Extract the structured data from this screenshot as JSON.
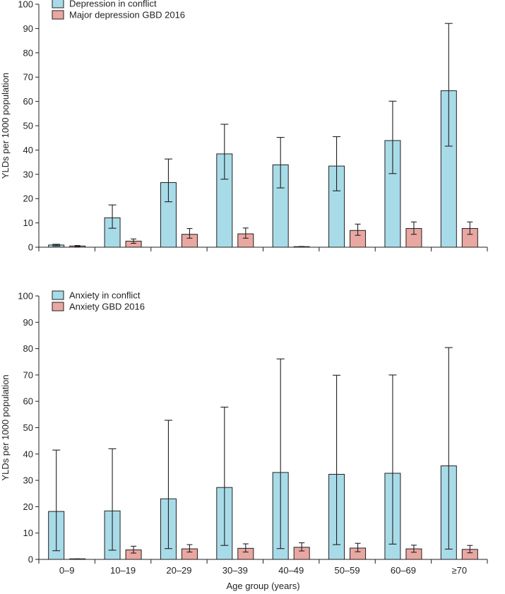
{
  "chart_data": [
    {
      "type": "bar",
      "panel": "top",
      "ylabel": "YLDs per 1000 population",
      "xlabel": "",
      "ylim": [
        0,
        100
      ],
      "yticks": [
        0,
        10,
        20,
        30,
        40,
        50,
        60,
        70,
        80,
        90,
        100
      ],
      "categories": [
        "0–9",
        "10–19",
        "20–29",
        "30–39",
        "40–49",
        "50–59",
        "60–69",
        "≥70"
      ],
      "legend_position": "top-left",
      "series": [
        {
          "name": "Depression in conflict",
          "color": "#a8dbe8",
          "values": [
            0.9,
            12.1,
            26.6,
            38.4,
            33.9,
            33.4,
            43.9,
            64.4
          ],
          "lower": [
            0.5,
            7.8,
            18.7,
            28.0,
            24.4,
            23.2,
            30.3,
            41.6
          ],
          "upper": [
            1.2,
            17.4,
            36.3,
            50.6,
            45.2,
            45.5,
            60.1,
            92.1
          ]
        },
        {
          "name": "Major depression GBD 2016",
          "color": "#e9a7a2",
          "values": [
            0.5,
            2.5,
            5.3,
            5.5,
            0.2,
            6.9,
            7.7,
            7.7
          ],
          "lower": [
            0.3,
            1.6,
            3.7,
            3.7,
            0.1,
            4.9,
            5.3,
            5.3
          ],
          "upper": [
            0.7,
            3.4,
            7.7,
            7.9,
            0.3,
            9.5,
            10.4,
            10.4
          ]
        }
      ]
    },
    {
      "type": "bar",
      "panel": "bottom",
      "ylabel": "YLDs per 1000 population",
      "xlabel": "Age group (years)",
      "ylim": [
        0,
        100
      ],
      "yticks": [
        0,
        10,
        20,
        30,
        40,
        50,
        60,
        70,
        80,
        90,
        100
      ],
      "categories": [
        "0–9",
        "10–19",
        "20–29",
        "30–39",
        "40–49",
        "50–59",
        "60–69",
        "≥70"
      ],
      "legend_position": "top-left",
      "series": [
        {
          "name": "Anxiety in conflict",
          "color": "#a8dbe8",
          "values": [
            18.2,
            18.4,
            23.0,
            27.3,
            33.0,
            32.3,
            32.7,
            35.5
          ],
          "lower": [
            3.3,
            3.5,
            4.1,
            5.3,
            4.1,
            5.6,
            5.8,
            3.9
          ],
          "upper": [
            41.5,
            42.0,
            52.8,
            57.8,
            76.1,
            69.9,
            70.0,
            80.4
          ]
        },
        {
          "name": "Anxiety GBD 2016",
          "color": "#e9a7a2",
          "values": [
            0.1,
            3.6,
            4.0,
            4.2,
            4.6,
            4.3,
            4.0,
            3.8
          ],
          "lower": [
            0.0,
            2.4,
            2.8,
            2.8,
            3.2,
            2.9,
            2.7,
            2.5
          ],
          "upper": [
            0.2,
            5.0,
            5.6,
            5.9,
            6.3,
            6.1,
            5.4,
            5.3
          ]
        }
      ]
    }
  ]
}
